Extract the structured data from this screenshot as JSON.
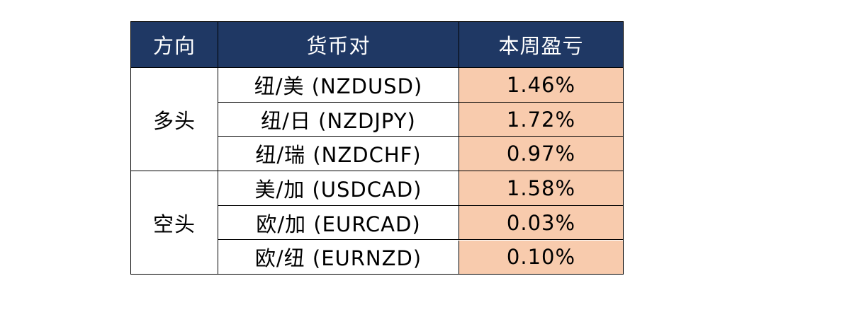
{
  "table": {
    "header": [
      "方向",
      "货币对",
      "本周盈亏"
    ],
    "groups": [
      {
        "direction": "多头",
        "rows": [
          {
            "pair": "纽/美 (NZDUSD)",
            "change": "1.46%"
          },
          {
            "pair": "纽/日 (NZDJPY)",
            "change": "1.72%"
          },
          {
            "pair": "纽/瑞 (NZDCHF)",
            "change": "0.97%"
          }
        ]
      },
      {
        "direction": "空头",
        "rows": [
          {
            "pair": "美/加 (USDCAD)",
            "change": "1.58%"
          },
          {
            "pair": "欧/加 (EURCAD)",
            "change": "0.03%"
          },
          {
            "pair": "欧/纽 (EURNZD)",
            "change": "0.10%"
          }
        ]
      }
    ]
  }
}
